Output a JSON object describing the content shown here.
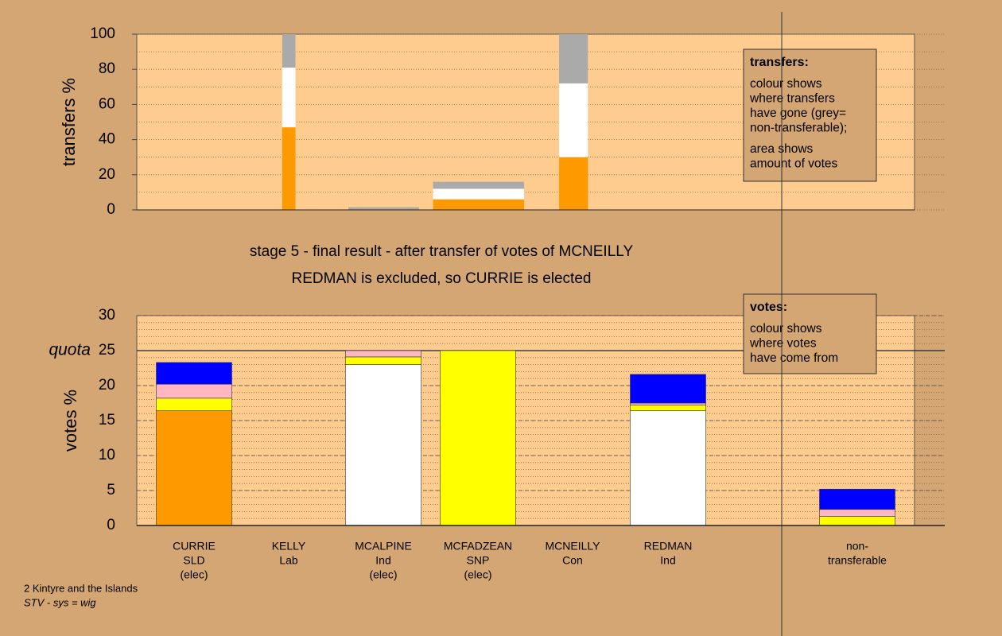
{
  "chart_data": [
    {
      "type": "bar",
      "ylabel": "transfers %",
      "ylim": [
        0,
        100
      ],
      "yticks": [
        0,
        20,
        40,
        60,
        80,
        100
      ],
      "minor_step": 10,
      "grid": true,
      "xlim": [
        0,
        100
      ],
      "x": [
        18.7,
        27.2,
        38.1,
        54.3
      ],
      "widths": [
        1.7,
        9.1,
        11.7,
        3.7
      ],
      "series": [
        {
          "color": "#ff9900",
          "values": [
            47,
            0,
            6,
            30
          ]
        },
        {
          "color": "#ffffff",
          "values": [
            34,
            0,
            6,
            42
          ]
        },
        {
          "color": "#aaaaaa",
          "values": [
            19,
            1.5,
            4,
            28
          ]
        }
      ],
      "legend": {
        "title": "transfers:",
        "paragraphs": [
          [
            "colour shows",
            "where transfers",
            "have gone (grey=",
            "non-transferable);"
          ],
          [
            "area shows",
            "amount of votes"
          ]
        ]
      }
    },
    {
      "type": "bar",
      "ylabel": "votes %",
      "ylim": [
        0,
        30
      ],
      "yticks": [
        0,
        5,
        10,
        15,
        20,
        25,
        30
      ],
      "minor_step": 1,
      "grid": true,
      "quota": {
        "value": 25,
        "label": "quota"
      },
      "categories": [
        [
          "CURRIE",
          "SLD",
          "(elec)"
        ],
        [
          "KELLY",
          "Lab"
        ],
        [
          "MCALPINE",
          "Ind",
          "(elec)"
        ],
        [
          "MCFADZEAN",
          "SNP",
          "(elec)"
        ],
        [
          "MCNEILLY",
          "Con"
        ],
        [
          "REDMAN",
          "Ind"
        ],
        [
          "non-",
          "transferable"
        ]
      ],
      "series": [
        {
          "color": "#ffffff",
          "values": [
            0,
            0,
            23,
            0,
            0,
            16.4,
            0
          ]
        },
        {
          "color": "#ff9900",
          "values": [
            16.4,
            0,
            0,
            0,
            0,
            0,
            0
          ]
        },
        {
          "color": "#ffff00",
          "values": [
            1.8,
            0,
            1.1,
            25,
            0,
            0.8,
            1.3
          ]
        },
        {
          "color": "#ffb6c1",
          "values": [
            2.0,
            0,
            0.9,
            0,
            0,
            0.3,
            1.0
          ]
        },
        {
          "color": "#0000ff",
          "values": [
            3.1,
            0,
            0,
            0,
            0,
            4.1,
            2.9
          ]
        }
      ],
      "legend": {
        "title": "votes:",
        "paragraphs": [
          [
            "colour shows",
            "where votes",
            "have come from"
          ]
        ]
      }
    }
  ],
  "stage_title": [
    "stage 5 - final result - after transfer of votes of MCNEILLY",
    "REDMAN is excluded, so CURRIE is elected"
  ],
  "footer": {
    "place": "2 Kintyre and the Islands",
    "system": "STV - sys = wig"
  }
}
